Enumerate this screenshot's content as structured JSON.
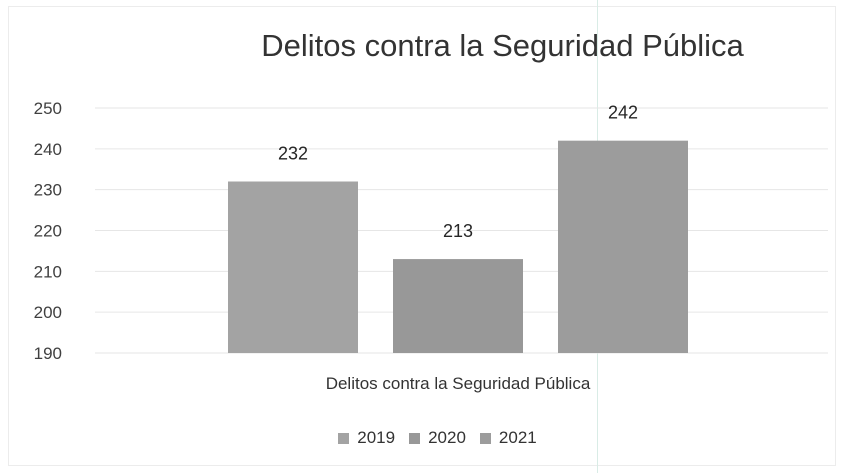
{
  "chart_data": {
    "type": "bar",
    "title": "Delitos contra la Seguridad Pública",
    "xlabel": "Delitos contra la Seguridad Pública",
    "ylabel": "",
    "ylim": [
      190,
      250
    ],
    "yticks": [
      190,
      200,
      210,
      220,
      230,
      240,
      250
    ],
    "categories": [
      "Delitos contra la Seguridad Pública"
    ],
    "series": [
      {
        "name": "2019",
        "values": [
          232
        ],
        "color": "#a3a3a3"
      },
      {
        "name": "2020",
        "values": [
          213
        ],
        "color": "#989898"
      },
      {
        "name": "2021",
        "values": [
          242
        ],
        "color": "#9c9c9c"
      }
    ],
    "grid": true,
    "legend": "bottom"
  }
}
